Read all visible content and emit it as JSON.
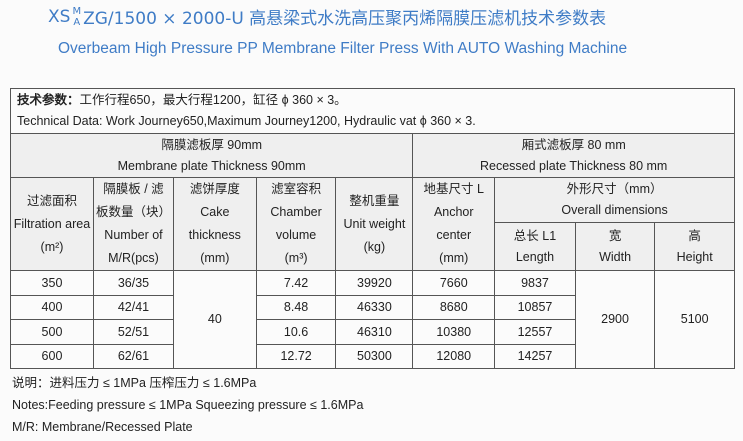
{
  "header": {
    "prefix": "XS",
    "sup": "M",
    "sub": "A",
    "title": "ZG/1500 × 2000-U 高悬梁式水洗高压聚丙烯隔膜压滤机技术参数表",
    "subtitle": "Overbeam  High Pressure PP Membrane Filter Press With AUTO Washing Machine"
  },
  "table": {
    "technical": {
      "cn_label": "技术参数：",
      "cn": "工作行程650，最大行程1200，缸径 ϕ 360 × 3。",
      "en": "Technical Data: Work Journey650,Maximum Journey1200, Hydraulic vat ϕ 360 × 3."
    },
    "plates": [
      {
        "cn": "隔膜滤板厚 90mm",
        "en": "Membrane plate Thickness 90mm"
      },
      {
        "cn": "厢式滤板厚 80 mm",
        "en": "Recessed plate Thickness 80 mm"
      }
    ],
    "headers": [
      [
        "过滤面积",
        "Filtration area",
        "(m²)"
      ],
      [
        "隔膜板 / 滤",
        "板数量（块）",
        "Number of",
        "M/R(pcs)"
      ],
      [
        "滤饼厚度",
        "Cake",
        "thickness",
        "(mm)"
      ],
      [
        "滤室容积",
        "Chamber",
        "volume",
        "(m³)"
      ],
      [
        "整机重量",
        "Unit weight",
        "(kg)"
      ],
      [
        "地基尺寸 L",
        "Anchor",
        "center",
        "(mm)"
      ]
    ],
    "overall": [
      "外形尺寸（mm）",
      "Overall dimensions"
    ],
    "sub_headers": [
      [
        "总长 L1",
        "Length"
      ],
      [
        "宽",
        "Width"
      ],
      [
        "高",
        "Height"
      ]
    ],
    "rows": [
      [
        "350",
        "36/35",
        "7.42",
        "39920",
        "7660",
        "9837"
      ],
      [
        "400",
        "42/41",
        "8.48",
        "46330",
        "8680",
        "10857"
      ],
      [
        "500",
        "52/51",
        "10.6",
        "46310",
        "10380",
        "12557"
      ],
      [
        "600",
        "62/61",
        "12.72",
        "50300",
        "12080",
        "14257"
      ]
    ],
    "cake": "40",
    "width": "2900",
    "height": "5100"
  },
  "notes": [
    "说明：进料压力 ≤ 1MPa   压榨压力 ≤ 1.6MPa",
    "Notes:Feeding pressure  ≤ 1MPa   Squeezing pressure  ≤ 1.6MPa",
    "M/R: Membrane/Recessed Plate"
  ]
}
